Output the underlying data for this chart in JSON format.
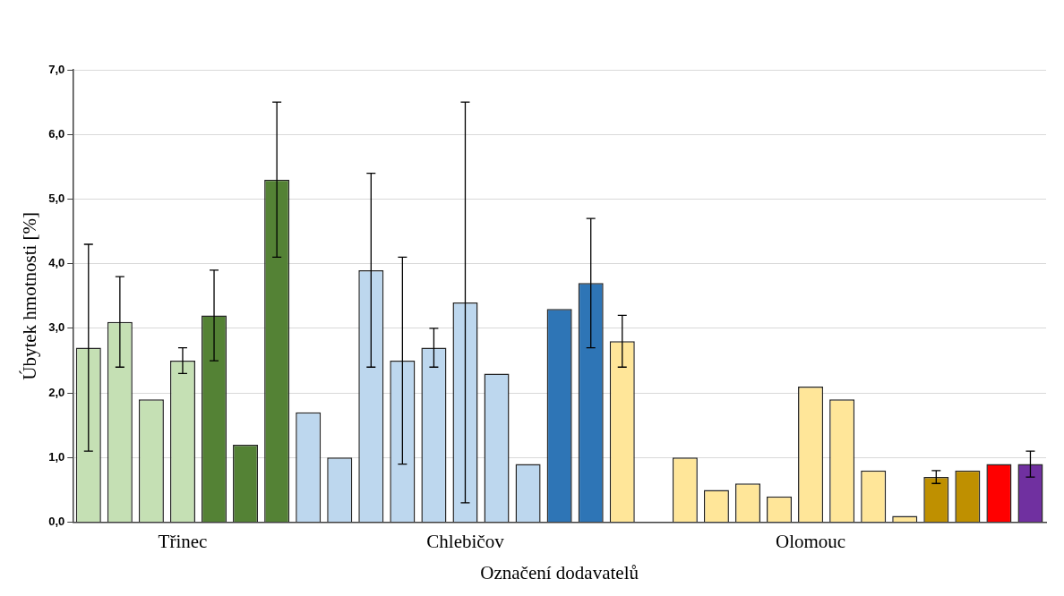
{
  "chart_data": {
    "type": "bar",
    "xlabel": "Označení dodavatelů",
    "ylabel": "Úbytek hmotnosti [%]",
    "categories": [
      null,
      null,
      null,
      "Třinec",
      null,
      null,
      null,
      null,
      null,
      null,
      null,
      null,
      "Chlebičov",
      null,
      null,
      null,
      null,
      null,
      null,
      null,
      null,
      null,
      null,
      "Olomouc",
      null,
      null,
      null,
      null,
      null,
      null,
      null
    ],
    "values": [
      2.7,
      3.1,
      1.9,
      2.5,
      3.2,
      1.2,
      5.3,
      1.7,
      1.0,
      3.9,
      2.5,
      2.7,
      3.4,
      2.3,
      0.9,
      3.3,
      3.7,
      2.8,
      null,
      1.0,
      0.5,
      0.6,
      0.4,
      2.1,
      1.9,
      0.8,
      0.1,
      0.7,
      0.8,
      0.9,
      0.9
    ],
    "errors": [
      1.6,
      0.7,
      null,
      0.2,
      0.7,
      null,
      1.2,
      null,
      null,
      1.5,
      1.6,
      0.3,
      3.1,
      null,
      null,
      null,
      1.0,
      0.4,
      null,
      null,
      null,
      null,
      null,
      null,
      null,
      null,
      null,
      0.1,
      null,
      null,
      0.2
    ],
    "colors": [
      "#c5e0b4",
      "#c5e0b4",
      "#c5e0b4",
      "#c5e0b4",
      "#548235",
      "#548235",
      "#548235",
      "#bdd7ee",
      "#bdd7ee",
      "#bdd7ee",
      "#bdd7ee",
      "#bdd7ee",
      "#bdd7ee",
      "#bdd7ee",
      "#bdd7ee",
      "#2e75b6",
      "#2e75b6",
      "#ffe699",
      "#ffe699",
      "#ffe699",
      "#ffe699",
      "#ffe699",
      "#ffe699",
      "#ffe699",
      "#ffe699",
      "#ffe699",
      "#ffe699",
      "#bf9000",
      "#bf9000",
      "#ff0000",
      "#7030a0"
    ],
    "ylim": [
      0,
      7
    ],
    "yticks": [
      {
        "value": 0,
        "label": "0,0"
      },
      {
        "value": 1,
        "label": "1,0"
      },
      {
        "value": 2,
        "label": "2,0"
      },
      {
        "value": 3,
        "label": "3,0"
      },
      {
        "value": 4,
        "label": "4,0"
      },
      {
        "value": 5,
        "label": "5,0"
      },
      {
        "value": 6,
        "label": "6,0"
      },
      {
        "value": 7,
        "label": "7,0"
      }
    ],
    "grid": "y",
    "legend": false
  }
}
